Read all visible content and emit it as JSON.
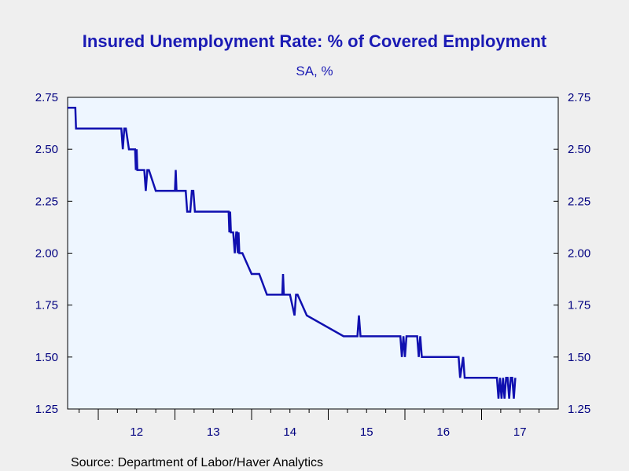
{
  "chart_data": {
    "type": "line",
    "title": "Insured Unemployment Rate: % of Covered Employment",
    "subtitle": "SA, %",
    "source": "Source:  Department of Labor/Haver Analytics",
    "ylim": [
      1.25,
      2.75
    ],
    "xlim": [
      2011.6,
      2018.0
    ],
    "y_ticks": [
      "2.75",
      "2.50",
      "2.25",
      "2.00",
      "1.75",
      "1.50",
      "1.25"
    ],
    "y_tick_values": [
      2.75,
      2.5,
      2.25,
      2.0,
      1.75,
      1.5,
      1.25
    ],
    "x_tick_labels": [
      "12",
      "13",
      "14",
      "15",
      "16",
      "17"
    ],
    "x_tick_label_positions": [
      2012.5,
      2013.5,
      2014.5,
      2015.5,
      2016.5,
      2017.5
    ],
    "x_major_ticks": [
      2012,
      2013,
      2014,
      2015,
      2016,
      2017
    ],
    "grid": false,
    "dual_axis": true,
    "line_color": "#1010b0",
    "plot_background": "#eef6ff",
    "series": [
      {
        "x": [
          2011.6,
          2011.7,
          2011.71,
          2012.3,
          2012.32,
          2012.34,
          2012.36,
          2012.4,
          2012.42,
          2012.48,
          2012.49,
          2012.5,
          2012.51,
          2012.52,
          2012.53,
          2012.6,
          2012.62,
          2012.64,
          2012.66,
          2012.75,
          2013.0,
          2013.01,
          2013.02,
          2013.04,
          2013.14,
          2013.16,
          2013.2,
          2013.22,
          2013.24,
          2013.26,
          2013.3,
          2013.7,
          2013.71,
          2013.72,
          2013.73,
          2013.74,
          2013.76,
          2013.78,
          2013.8,
          2013.81,
          2013.82,
          2013.83,
          2013.84,
          2013.86,
          2013.88,
          2014.0,
          2014.1,
          2014.2,
          2014.4,
          2014.41,
          2014.42,
          2014.43,
          2014.5,
          2014.56,
          2014.58,
          2014.6,
          2014.72,
          2015.2,
          2015.38,
          2015.4,
          2015.42,
          2015.44,
          2015.94,
          2015.96,
          2015.98,
          2016.0,
          2016.02,
          2016.16,
          2016.18,
          2016.2,
          2016.22,
          2016.7,
          2016.72,
          2016.76,
          2016.78,
          2017.2,
          2017.22,
          2017.24,
          2017.26,
          2017.28,
          2017.3,
          2017.32,
          2017.34,
          2017.36,
          2017.38,
          2017.4,
          2017.42,
          2017.44
        ],
        "values": [
          2.7,
          2.7,
          2.6,
          2.6,
          2.5,
          2.6,
          2.6,
          2.5,
          2.5,
          2.5,
          2.4,
          2.5,
          2.4,
          2.4,
          2.4,
          2.4,
          2.3,
          2.4,
          2.4,
          2.3,
          2.3,
          2.4,
          2.3,
          2.3,
          2.3,
          2.2,
          2.2,
          2.3,
          2.3,
          2.2,
          2.2,
          2.2,
          2.1,
          2.2,
          2.1,
          2.1,
          2.1,
          2.0,
          2.1,
          2.1,
          2.0,
          2.1,
          2.0,
          2.0,
          2.0,
          1.9,
          1.9,
          1.8,
          1.8,
          1.9,
          1.8,
          1.8,
          1.8,
          1.7,
          1.8,
          1.8,
          1.7,
          1.6,
          1.6,
          1.7,
          1.6,
          1.6,
          1.6,
          1.5,
          1.6,
          1.5,
          1.6,
          1.6,
          1.5,
          1.6,
          1.5,
          1.5,
          1.4,
          1.5,
          1.4,
          1.4,
          1.3,
          1.4,
          1.3,
          1.4,
          1.3,
          1.4,
          1.4,
          1.3,
          1.4,
          1.4,
          1.3,
          1.4
        ]
      }
    ]
  }
}
